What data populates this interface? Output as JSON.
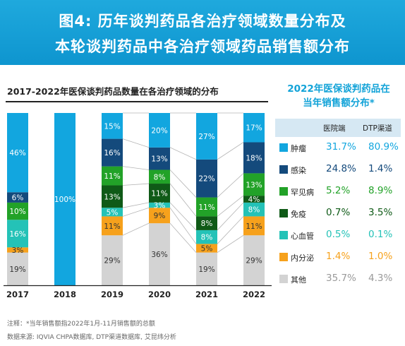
{
  "banner": {
    "line1": "图4: 历年谈判药品各治疗领域数量分布及",
    "line2": "本轮谈判药品中各治疗领域药品销售额分布"
  },
  "colors": {
    "肿瘤": "#12a6df",
    "感染": "#144a7c",
    "罕见病": "#22a228",
    "免疫": "#0f5a17",
    "心血管": "#24c2b7",
    "内分泌": "#f6a11c",
    "其他": "#d3d3d3"
  },
  "chart_data": [
    {
      "type": "bar",
      "stacked": true,
      "percent": true,
      "title": "2017-2022年医保谈判药品数量在各治疗领域的分布",
      "categories": [
        "2017",
        "2018",
        "2019",
        "2020",
        "2021",
        "2022"
      ],
      "series": [
        {
          "name": "其他",
          "values": [
            19,
            0,
            29,
            36,
            19,
            29
          ]
        },
        {
          "name": "内分泌",
          "values": [
            3,
            0,
            11,
            9,
            5,
            11
          ]
        },
        {
          "name": "心血管",
          "values": [
            16,
            0,
            5,
            3,
            8,
            8
          ]
        },
        {
          "name": "免疫",
          "values": [
            0,
            0,
            13,
            11,
            8,
            4
          ]
        },
        {
          "name": "罕见病",
          "values": [
            10,
            0,
            11,
            8,
            11,
            13
          ]
        },
        {
          "name": "感染",
          "values": [
            6,
            0,
            16,
            13,
            22,
            18
          ]
        },
        {
          "name": "肿瘤",
          "values": [
            46,
            100,
            15,
            20,
            27,
            17
          ]
        }
      ],
      "ylim": [
        0,
        100
      ],
      "grid": false
    },
    {
      "type": "table",
      "title": "2022年医保谈判药品在当年销售额分布*",
      "title_lines": [
        "2022年医保谈判药品在",
        "当年销售额分布*"
      ],
      "columns": [
        "医院端",
        "DTP渠道"
      ],
      "rows": [
        {
          "category": "肿瘤",
          "hospital": "31.7%",
          "dtp": "80.9%"
        },
        {
          "category": "感染",
          "hospital": "24.8%",
          "dtp": "1.4%"
        },
        {
          "category": "罕见病",
          "hospital": "5.2%",
          "dtp": "8.9%"
        },
        {
          "category": "免疫",
          "hospital": "0.7%",
          "dtp": "3.5%"
        },
        {
          "category": "心血管",
          "hospital": "0.5%",
          "dtp": "0.1%"
        },
        {
          "category": "内分泌",
          "hospital": "1.4%",
          "dtp": "1.0%"
        },
        {
          "category": "其他",
          "hospital": "35.7%",
          "dtp": "4.3%"
        }
      ]
    }
  ],
  "footnotes": {
    "note": "注释：*当年销售额指2022年1月-11月销售额的总额",
    "source": "数据来源: IQVIA CHPA数据库, DTP渠道数据库, 艾昆纬分析"
  }
}
